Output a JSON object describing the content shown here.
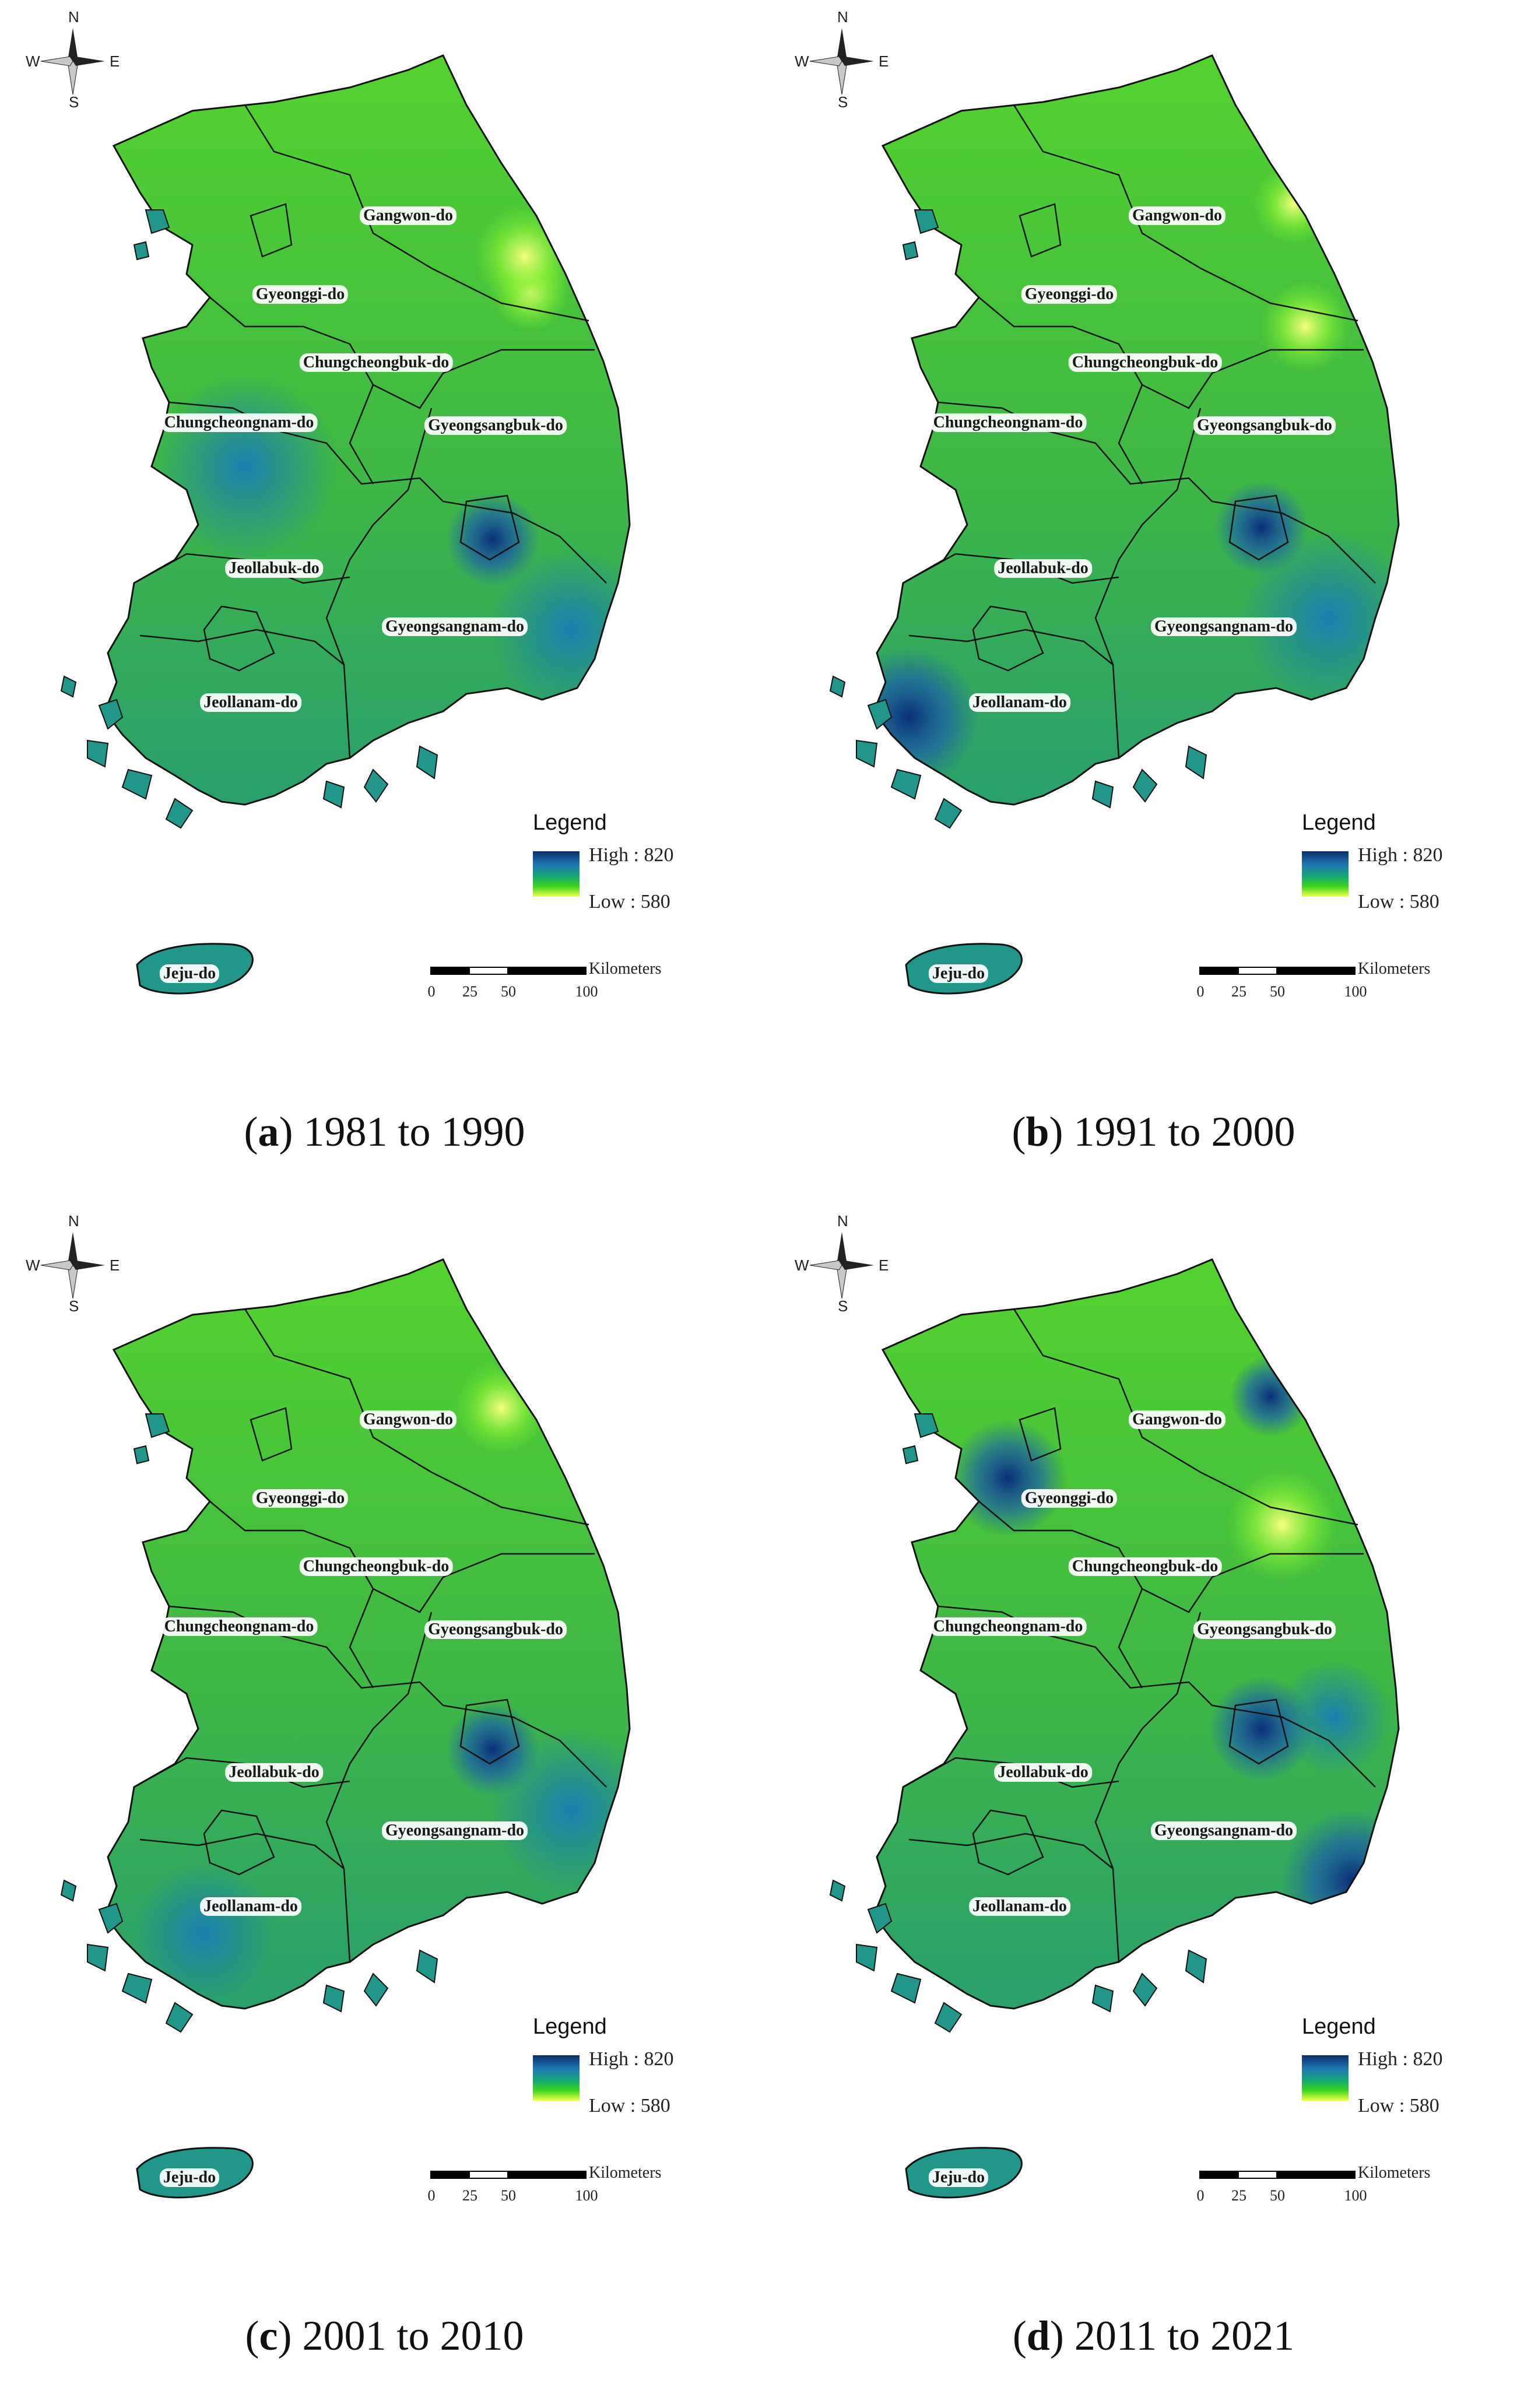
{
  "compass": {
    "n": "N",
    "s": "S",
    "e": "E",
    "w": "W"
  },
  "legend": {
    "title": "Legend",
    "high": "High : 820",
    "low": "Low : 580",
    "colors": [
      "#08306b",
      "#1f78b4",
      "#14a774",
      "#3fd620",
      "#f4ff4a"
    ]
  },
  "scale": {
    "unit": "Kilometers",
    "ticks": [
      "0",
      "25",
      "50",
      "100"
    ]
  },
  "provinces": [
    "Gangwon-do",
    "Gyeonggi-do",
    "Chungcheongbuk-do",
    "Chungcheongnam-do",
    "Gyeongsangbuk-do",
    "Jeollabuk-do",
    "Gyeongsangnam-do",
    "Jeollanam-do",
    "Jeju-do"
  ],
  "panels": [
    {
      "letter": "a",
      "period": "1981 to 1990"
    },
    {
      "letter": "b",
      "period": "1991 to 2000"
    },
    {
      "letter": "c",
      "period": "2001 to 2010"
    },
    {
      "letter": "d",
      "period": "2011 to 2021"
    }
  ]
}
